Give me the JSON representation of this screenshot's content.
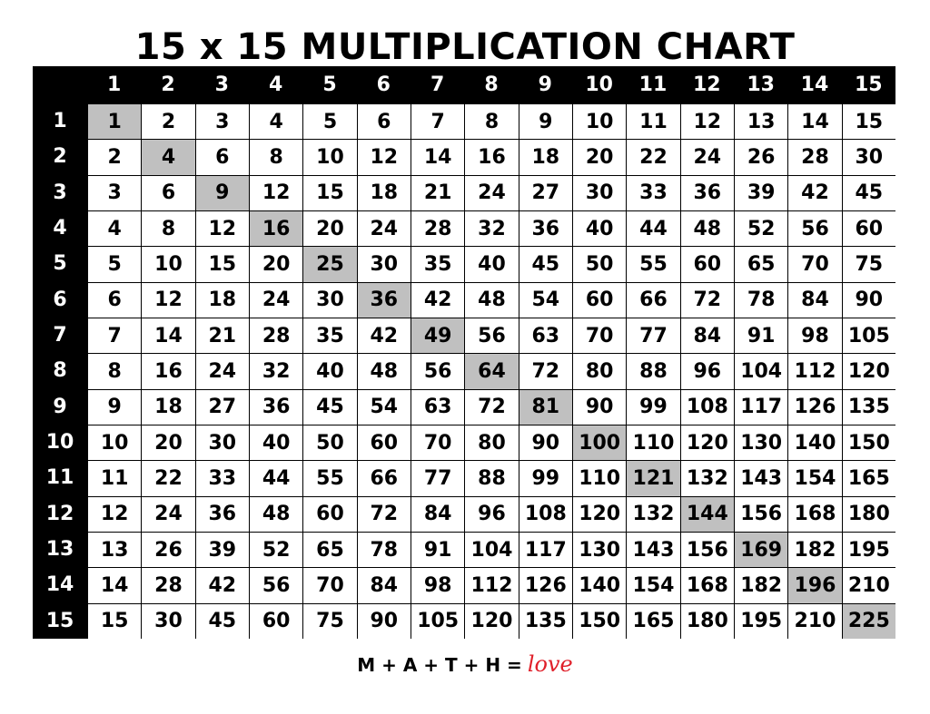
{
  "title": "15 x 15 MULTIPLICATION CHART",
  "column_headers": [
    "1",
    "2",
    "3",
    "4",
    "5",
    "6",
    "7",
    "8",
    "9",
    "10",
    "11",
    "12",
    "13",
    "14",
    "15"
  ],
  "row_headers": [
    "1",
    "2",
    "3",
    "4",
    "5",
    "6",
    "7",
    "8",
    "9",
    "10",
    "11",
    "12",
    "13",
    "14",
    "15"
  ],
  "rows": [
    [
      1,
      2,
      3,
      4,
      5,
      6,
      7,
      8,
      9,
      10,
      11,
      12,
      13,
      14,
      15
    ],
    [
      2,
      4,
      6,
      8,
      10,
      12,
      14,
      16,
      18,
      20,
      22,
      24,
      26,
      28,
      30
    ],
    [
      3,
      6,
      9,
      12,
      15,
      18,
      21,
      24,
      27,
      30,
      33,
      36,
      39,
      42,
      45
    ],
    [
      4,
      8,
      12,
      16,
      20,
      24,
      28,
      32,
      36,
      40,
      44,
      48,
      52,
      56,
      60
    ],
    [
      5,
      10,
      15,
      20,
      25,
      30,
      35,
      40,
      45,
      50,
      55,
      60,
      65,
      70,
      75
    ],
    [
      6,
      12,
      18,
      24,
      30,
      36,
      42,
      48,
      54,
      60,
      66,
      72,
      78,
      84,
      90
    ],
    [
      7,
      14,
      21,
      28,
      35,
      42,
      49,
      56,
      63,
      70,
      77,
      84,
      91,
      98,
      105
    ],
    [
      8,
      16,
      24,
      32,
      40,
      48,
      56,
      64,
      72,
      80,
      88,
      96,
      104,
      112,
      120
    ],
    [
      9,
      18,
      27,
      36,
      45,
      54,
      63,
      72,
      81,
      90,
      99,
      108,
      117,
      126,
      135
    ],
    [
      10,
      20,
      30,
      40,
      50,
      60,
      70,
      80,
      90,
      100,
      110,
      120,
      130,
      140,
      150
    ],
    [
      11,
      22,
      33,
      44,
      55,
      66,
      77,
      88,
      99,
      110,
      121,
      132,
      143,
      154,
      165
    ],
    [
      12,
      24,
      36,
      48,
      60,
      72,
      84,
      96,
      108,
      120,
      132,
      144,
      156,
      168,
      180
    ],
    [
      13,
      26,
      39,
      52,
      65,
      78,
      91,
      104,
      117,
      130,
      143,
      156,
      169,
      182,
      195
    ],
    [
      14,
      28,
      42,
      56,
      70,
      84,
      98,
      112,
      126,
      140,
      154,
      168,
      182,
      196,
      210
    ],
    [
      15,
      30,
      45,
      60,
      75,
      90,
      105,
      120,
      135,
      150,
      165,
      180,
      195,
      210,
      225
    ]
  ],
  "highlight": "diagonal squares",
  "colors": {
    "header_bg": "#000000",
    "header_text": "#ffffff",
    "square_highlight": "#c0c0c0",
    "love": "#e0202a"
  },
  "footer": {
    "equation": "M + A + T + H =",
    "word": "love"
  }
}
